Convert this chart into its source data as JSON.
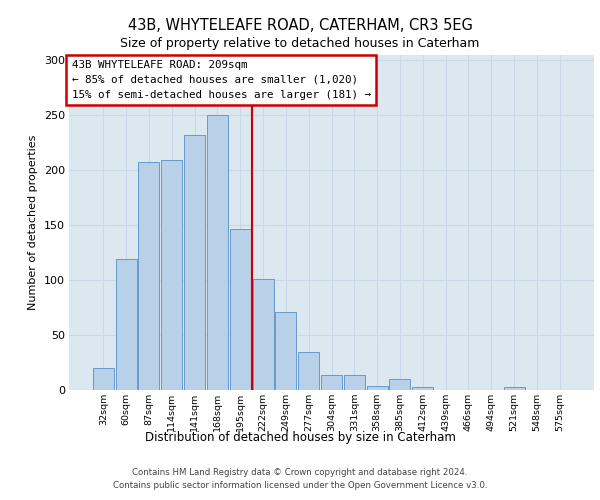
{
  "title1": "43B, WHYTELEAFE ROAD, CATERHAM, CR3 5EG",
  "title2": "Size of property relative to detached houses in Caterham",
  "xlabel": "Distribution of detached houses by size in Caterham",
  "ylabel": "Number of detached properties",
  "bar_labels": [
    "32sqm",
    "60sqm",
    "87sqm",
    "114sqm",
    "141sqm",
    "168sqm",
    "195sqm",
    "222sqm",
    "249sqm",
    "277sqm",
    "304sqm",
    "331sqm",
    "358sqm",
    "385sqm",
    "412sqm",
    "439sqm",
    "466sqm",
    "494sqm",
    "521sqm",
    "548sqm",
    "575sqm"
  ],
  "bar_values": [
    20,
    119,
    208,
    209,
    232,
    250,
    147,
    101,
    71,
    35,
    14,
    14,
    4,
    10,
    3,
    0,
    0,
    0,
    3,
    0,
    0
  ],
  "bar_color": "#b8d0e8",
  "bar_edge_color": "#6699cc",
  "ylim": [
    0,
    305
  ],
  "yticks": [
    0,
    50,
    100,
    150,
    200,
    250,
    300
  ],
  "grid_color": "#c8d8e8",
  "background_color": "#dce8f0",
  "annotation_box_text": "43B WHYTELEAFE ROAD: 209sqm\n← 85% of detached houses are smaller (1,020)\n15% of semi-detached houses are larger (181) →",
  "annotation_box_color": "#cc0000",
  "property_sqm": 209,
  "bin_starts": [
    32,
    60,
    87,
    114,
    141,
    168,
    195,
    222,
    249,
    277,
    304,
    331,
    358,
    385,
    412,
    439,
    466,
    494,
    521,
    548,
    575
  ],
  "footer1": "Contains HM Land Registry data © Crown copyright and database right 2024.",
  "footer2": "Contains public sector information licensed under the Open Government Licence v3.0."
}
